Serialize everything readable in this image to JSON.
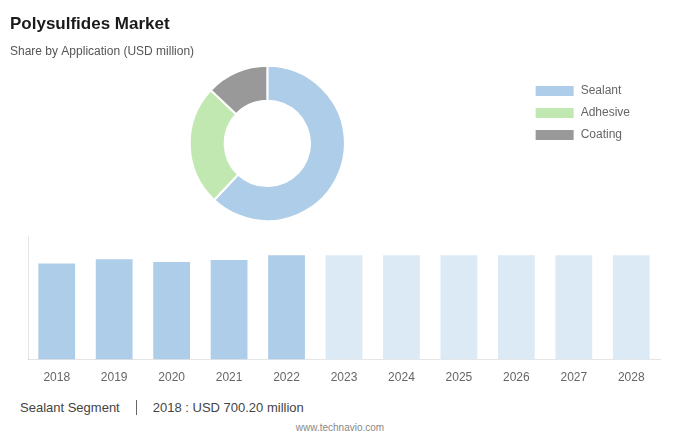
{
  "chart_data": [
    {
      "type": "doughnut",
      "title": "Polysulfides Market",
      "subtitle": "Share by Application (USD million)",
      "categories": [
        "Sealant",
        "Adhesive",
        "Coating"
      ],
      "values": [
        62,
        25,
        13
      ],
      "colors": [
        "#aecde8",
        "#c0e8b0",
        "#999999"
      ],
      "legend": "right"
    },
    {
      "type": "bar",
      "categories": [
        "2018",
        "2019",
        "2020",
        "2021",
        "2022",
        "2023",
        "2024",
        "2025",
        "2026",
        "2027",
        "2028"
      ],
      "values": [
        700,
        730,
        710,
        725,
        760,
        760,
        760,
        760,
        760,
        760,
        760
      ],
      "colors": [
        "#aecde8",
        "#aecde8",
        "#aecde8",
        "#aecde8",
        "#aecde8",
        "#dceaf5",
        "#dceaf5",
        "#dceaf5",
        "#dceaf5",
        "#dceaf5",
        "#dceaf5"
      ],
      "ylim": [
        0,
        900
      ],
      "grid": false,
      "tick_labels": "x",
      "annotations": [
        "Sealant Segment",
        "2018 : USD 700.20 million",
        "www.technavio.com"
      ]
    }
  ]
}
